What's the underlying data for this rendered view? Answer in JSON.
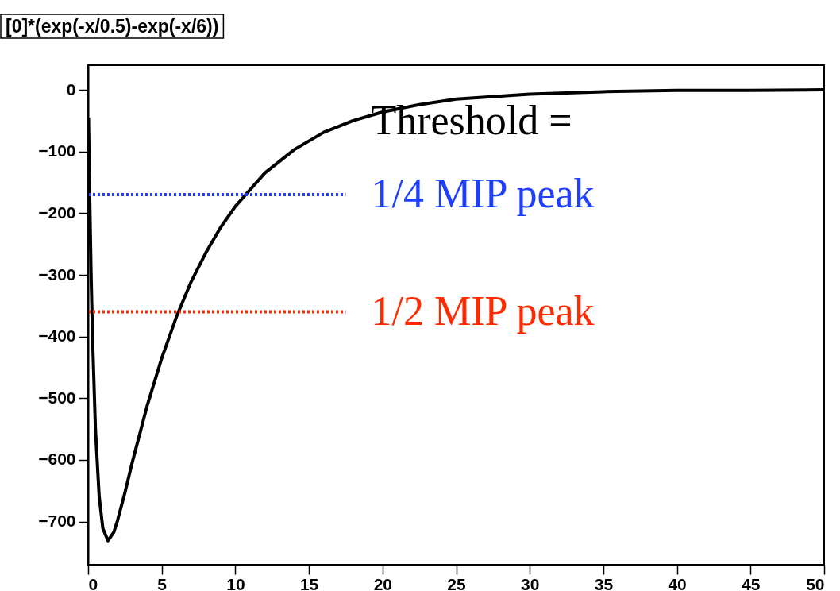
{
  "chart_data": {
    "type": "line",
    "title": "[0]*(exp(-x/0.5)-exp(-x/6))",
    "xlim": [
      0,
      50
    ],
    "xticks": [
      0,
      5,
      10,
      15,
      20,
      25,
      30,
      35,
      40,
      45,
      50
    ],
    "ylim": [
      -770,
      40
    ],
    "yticks": [
      -700,
      -600,
      -500,
      -400,
      -300,
      -200,
      -100,
      0
    ],
    "grid": false,
    "legend": false,
    "marker": "none",
    "annotations": [
      "Threshold ="
    ],
    "series": [
      {
        "color": "#000000",
        "line_style": "solid",
        "x": [
          0.025,
          0.1,
          0.2,
          0.3,
          0.5,
          0.75,
          1.0,
          1.35,
          1.75,
          2,
          2.5,
          3,
          4,
          5,
          6,
          7,
          8,
          9,
          10,
          12,
          14,
          16,
          18,
          20,
          22.5,
          25,
          30,
          35,
          40,
          45,
          50
        ],
        "values": [
          -45,
          -165,
          -297,
          -402,
          -552,
          -659,
          -711,
          -731,
          -717,
          -698,
          -653,
          -604,
          -513,
          -435,
          -368,
          -311,
          -264,
          -223,
          -189,
          -135,
          -97,
          -69,
          -50,
          -36,
          -24,
          -15,
          -7,
          -3,
          -1,
          -1,
          0
        ]
      },
      {
        "name": "1/4 MIP peak",
        "color": "#1f3fff",
        "line_style": "dotted",
        "x": [
          0,
          17.5
        ],
        "values": [
          -170,
          -170
        ]
      },
      {
        "name": "1/2 MIP peak",
        "color": "#ff2a00",
        "line_style": "dotted",
        "x": [
          0,
          17.5
        ],
        "values": [
          -360,
          -360
        ]
      }
    ]
  }
}
